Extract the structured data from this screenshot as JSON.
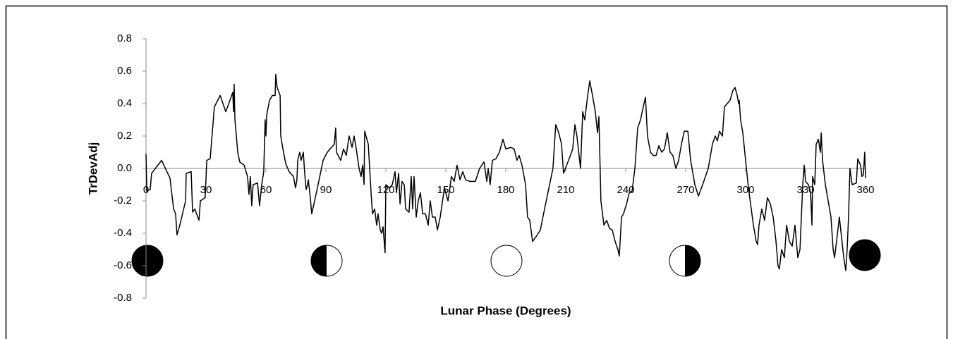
{
  "chart_data": {
    "type": "line",
    "x_label": "Lunar Phase (Degrees)",
    "y_label": "TrDevAdj",
    "x": [
      0,
      0.4,
      2.1,
      2.8,
      7.8,
      12,
      13.8,
      14.8,
      15.5,
      16.9,
      19.8,
      20.1,
      22.6,
      23.3,
      24.4,
      26.5,
      27.2,
      29.6,
      30.4,
      32.1,
      34.2,
      37.1,
      39.9,
      42,
      43.4,
      43.8,
      44.1,
      44.5,
      45.9,
      46.9,
      49.1,
      50.8,
      51.5,
      52.2,
      52.9,
      53.6,
      55.8,
      56.8,
      57.9,
      58.9,
      59.6,
      60,
      60.4,
      61.8,
      63.2,
      64.6,
      64.9,
      65.6,
      67.1,
      67.4,
      68.8,
      69.9,
      71.6,
      73.8,
      74.8,
      75.5,
      75.9,
      76.9,
      77.6,
      78.7,
      79.4,
      80.1,
      80.8,
      81.2,
      82.2,
      82.9,
      84,
      86.1,
      88.6,
      90.7,
      92.1,
      94.2,
      94.9,
      95.3,
      97.4,
      98.8,
      100.2,
      101.6,
      103.1,
      104.1,
      105.2,
      106.6,
      107.6,
      108.4,
      109.1,
      109.4,
      111.2,
      112.6,
      113.3,
      114.4,
      115.4,
      116.1,
      117.2,
      117.9,
      118.6,
      119.6,
      120,
      121.8,
      123.2,
      124.6,
      125.3,
      126.4,
      127.1,
      128.1,
      129.2,
      129.9,
      131.6,
      132.7,
      133.4,
      134.1,
      135.2,
      136.2,
      137.3,
      138.4,
      139.8,
      141.2,
      142.2,
      143.3,
      144.7,
      145.8,
      147.2,
      149.3,
      151.1,
      152.8,
      154.2,
      155.6,
      157.1,
      158.5,
      159.9,
      162,
      164.8,
      166.9,
      169.1,
      170.5,
      171.2,
      172.2,
      173.3,
      175.1,
      176.8,
      178.6,
      180,
      182.5,
      184.2,
      185.6,
      186.7,
      188.1,
      189.9,
      190.9,
      192,
      193.4,
      195.2,
      197.3,
      199.4,
      203.6,
      205,
      206.5,
      207.9,
      208.9,
      211.4,
      213.5,
      214.6,
      215.6,
      217.4,
      218.5,
      219.5,
      221,
      222,
      223.4,
      224.8,
      225.9,
      226.6,
      227.6,
      229.1,
      230.5,
      231.9,
      233.3,
      234.7,
      236.1,
      236.8,
      237.9,
      238.9,
      240.4,
      241.8,
      243.2,
      244.6,
      246,
      247.4,
      248.8,
      249.9,
      250.9,
      252.4,
      253.8,
      255.2,
      256.6,
      258,
      259.4,
      260.8,
      262.2,
      263.6,
      265.1,
      266.5,
      267.9,
      269.3,
      271.1,
      272.5,
      273.2,
      274.6,
      276.4,
      278.5,
      281.3,
      283.4,
      284.8,
      285.9,
      286.9,
      288.4,
      289.4,
      290.8,
      292.2,
      293.6,
      294.7,
      295.8,
      296.5,
      296.8,
      297.5,
      298.6,
      300.4,
      301.4,
      302.5,
      303.9,
      305.3,
      306,
      306.7,
      308.1,
      309.5,
      310.9,
      312.4,
      313.8,
      315.2,
      316.2,
      316.9,
      318,
      319.4,
      320.5,
      321.9,
      323.3,
      324.7,
      326.1,
      327.2,
      327.9,
      328.6,
      329.3,
      330,
      331.4,
      332.5,
      333.2,
      333.5,
      334.6,
      335.3,
      336.4,
      337.4,
      337.8,
      338.5,
      339.9,
      341.3,
      342.7,
      343.8,
      344.5,
      345.5,
      346.9,
      349.1,
      350.1,
      350.8,
      351.5,
      352.2,
      353.3,
      355.4,
      356.1,
      357.5,
      358.2,
      358.9,
      359.6,
      360
    ],
    "values": [
      0.09,
      -0.14,
      -0.13,
      -0.03,
      0.05,
      -0.06,
      -0.25,
      -0.28,
      -0.41,
      -0.35,
      -0.2,
      -0.03,
      -0.02,
      -0.27,
      -0.25,
      -0.32,
      -0.2,
      -0.18,
      0.05,
      0.06,
      0.38,
      0.45,
      0.35,
      0.42,
      0.47,
      0.35,
      0.52,
      0.3,
      0.1,
      0.04,
      0.02,
      -0.05,
      -0.16,
      -0.05,
      -0.23,
      -0.1,
      -0.09,
      -0.23,
      -0.1,
      -0.02,
      0.3,
      0.2,
      0.33,
      0.42,
      0.45,
      0.45,
      0.58,
      0.5,
      0.45,
      0.2,
      0.1,
      0.03,
      -0.02,
      -0.05,
      -0.12,
      -0.07,
      0.05,
      0.1,
      0.05,
      0.1,
      -0.03,
      -0.13,
      -0.1,
      -0.07,
      -0.18,
      -0.28,
      -0.22,
      -0.1,
      0.05,
      0.1,
      0.12,
      0.15,
      0.25,
      0.1,
      0.05,
      0.12,
      0.08,
      0.2,
      0.13,
      0.2,
      0.12,
      0,
      -0.05,
      0.02,
      -0.1,
      0.23,
      0.15,
      -0.15,
      -0.28,
      -0.25,
      -0.35,
      -0.28,
      -0.38,
      -0.4,
      -0.36,
      -0.52,
      -0.1,
      -0.12,
      -0.1,
      -0.02,
      -0.15,
      -0.03,
      -0.22,
      -0.08,
      -0.1,
      -0.25,
      -0.27,
      -0.05,
      -0.25,
      -0.05,
      -0.3,
      -0.2,
      -0.15,
      -0.28,
      -0.28,
      -0.35,
      -0.2,
      -0.3,
      -0.3,
      -0.38,
      -0.3,
      -0.12,
      -0.2,
      -0.05,
      -0.08,
      0.02,
      -0.07,
      -0.02,
      -0.07,
      -0.08,
      -0.08,
      0,
      0.04,
      -0.08,
      0,
      -0.1,
      0.05,
      0.06,
      0.1,
      0.18,
      0.12,
      0.13,
      0.12,
      0.05,
      0.08,
      0.02,
      -0.1,
      -0.3,
      -0.32,
      -0.45,
      -0.42,
      -0.38,
      -0.25,
      0,
      0.27,
      0.22,
      0.15,
      -0.03,
      0.05,
      0.12,
      0.27,
      0.2,
      0,
      0.35,
      0.3,
      0.45,
      0.54,
      0.45,
      0.35,
      0.22,
      0.32,
      -0.2,
      -0.35,
      -0.32,
      -0.37,
      -0.38,
      -0.45,
      -0.5,
      -0.54,
      -0.3,
      -0.28,
      -0.22,
      -0.15,
      -0.14,
      0,
      0.25,
      0.3,
      0.38,
      0.44,
      0.2,
      0.1,
      0.08,
      0.08,
      0.14,
      0.1,
      0.12,
      0.22,
      0.1,
      0.08,
      0,
      0.05,
      0.15,
      0.23,
      0.23,
      0.05,
      0,
      -0.1,
      -0.17,
      -0.1,
      0,
      0.15,
      0.2,
      0.17,
      0.23,
      0.2,
      0.38,
      0.4,
      0.42,
      0.48,
      0.5,
      0.45,
      0.4,
      0.42,
      0.3,
      0.22,
      0,
      -0.12,
      -0.22,
      -0.35,
      -0.45,
      -0.47,
      -0.35,
      -0.25,
      -0.32,
      -0.18,
      -0.22,
      -0.3,
      -0.45,
      -0.6,
      -0.62,
      -0.5,
      -0.55,
      -0.35,
      -0.45,
      -0.48,
      -0.35,
      -0.55,
      -0.5,
      -0.3,
      -0.1,
      0.02,
      -0.08,
      -0.1,
      -0.15,
      -0.35,
      -0.05,
      -0.1,
      0.15,
      0.18,
      0.1,
      0.22,
      0.05,
      -0.1,
      -0.2,
      -0.3,
      -0.5,
      -0.55,
      -0.45,
      -0.3,
      -0.55,
      -0.63,
      -0.5,
      -0.3,
      0,
      -0.1,
      -0.09,
      0.06,
      0.02,
      -0.05,
      -0.04,
      0.1,
      -0.06
    ],
    "color": "#000000",
    "xlim": [
      0,
      360
    ],
    "xticks": [
      0,
      30,
      60,
      90,
      120,
      150,
      180,
      210,
      240,
      270,
      300,
      330,
      360
    ],
    "ylim": [
      -0.8,
      0.8
    ],
    "yticks": [
      -0.8,
      -0.6,
      -0.4,
      -0.2,
      {
        "value": 0,
        "label": "0.0"
      },
      0.2,
      0.4,
      0.6,
      0.8
    ]
  }
}
